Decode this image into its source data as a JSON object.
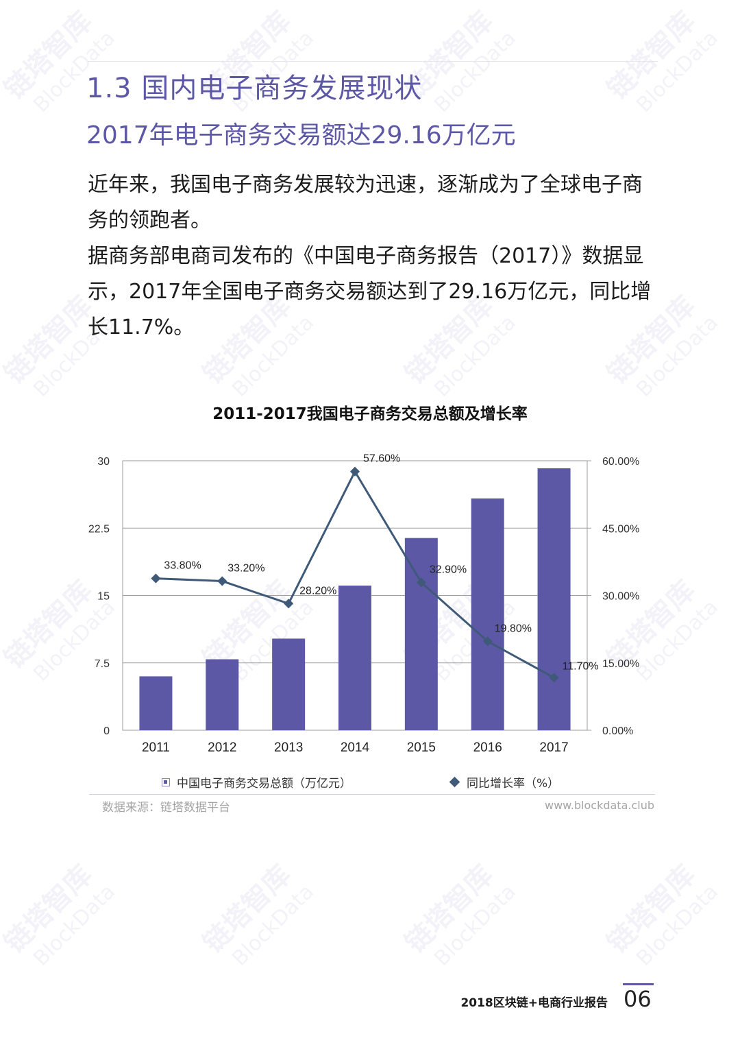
{
  "page": {
    "section_title": "1.3 国内电子商务发展现状",
    "subtitle": "2017年电子商务交易额达29.16万亿元",
    "paragraphs": [
      "近年来，我国电子商务发展较为迅速，逐渐成为了全球电子商务的领跑者。",
      "据商务部电商司发布的《中国电子商务报告（2017）》数据显示，2017年全国电子商务交易额达到了29.16万亿元，同比增长11.7%。"
    ]
  },
  "watermark": {
    "cn": "链塔智库",
    "en": "BlockData"
  },
  "chart_data": {
    "type": "bar",
    "title": "2011-2017我国电子商务交易总额及增长率",
    "categories": [
      "2011",
      "2012",
      "2013",
      "2014",
      "2015",
      "2016",
      "2017"
    ],
    "series": [
      {
        "name": "中国电子商务交易总额（万亿元）",
        "type": "bar",
        "axis": "left",
        "color": "#5d58a6",
        "values": [
          6.0,
          7.9,
          10.2,
          16.1,
          21.4,
          25.8,
          29.16
        ]
      },
      {
        "name": "同比增长率（%）",
        "type": "line",
        "axis": "right",
        "color": "#3e5a78",
        "values": [
          33.8,
          33.2,
          28.2,
          57.6,
          32.9,
          19.8,
          11.7
        ],
        "labels": [
          "33.80%",
          "33.20%",
          "28.20%",
          "57.60%",
          "32.90%",
          "19.80%",
          "11.70%"
        ]
      }
    ],
    "ylim": [
      0,
      30
    ],
    "y2lim": [
      0,
      60
    ],
    "yticks": [
      "0",
      "7.5",
      "15",
      "22.5",
      "30"
    ],
    "y2ticks": [
      "0.00%",
      "15.00%",
      "30.00%",
      "45.00%",
      "60.00%"
    ],
    "grid": true,
    "legend_position": "bottom"
  },
  "source": {
    "left": "数据来源：链塔数据平台",
    "right": "www.blockdata.club"
  },
  "footer": {
    "report": "2018区块链+电商行业报告",
    "page": "06"
  }
}
